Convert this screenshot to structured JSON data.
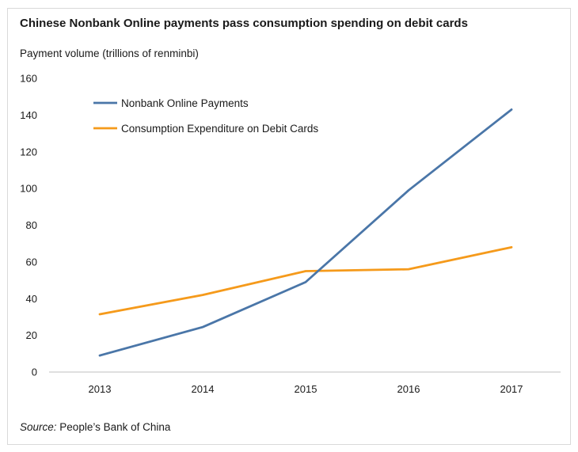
{
  "title": "Chinese Nonbank Online payments pass consumption spending on debit cards",
  "source_label": "Source:",
  "source_text": "People’s Bank of China",
  "colors": {
    "series1": "#4a76a8",
    "series2": "#f59a1b",
    "axis": "#bfbfbf",
    "text": "#1a1a1a"
  },
  "chart_data": {
    "type": "line",
    "title": "Chinese Nonbank Online payments pass consumption spending on debit cards",
    "ylabel": "Payment volume (trillions of renminbi)",
    "xlabel": "",
    "x": [
      "2013",
      "2014",
      "2015",
      "2016",
      "2017"
    ],
    "ylim": [
      0,
      160
    ],
    "yticks": [
      0,
      20,
      40,
      60,
      80,
      100,
      120,
      140,
      160
    ],
    "grid": false,
    "legend_position": "top-left",
    "series": [
      {
        "name": "Nonbank Online Payments",
        "values": [
          9,
          24.5,
          49,
          99,
          143
        ]
      },
      {
        "name": "Consumption Expenditure on Debit Cards",
        "values": [
          31.5,
          42,
          55,
          56,
          68
        ]
      }
    ]
  }
}
